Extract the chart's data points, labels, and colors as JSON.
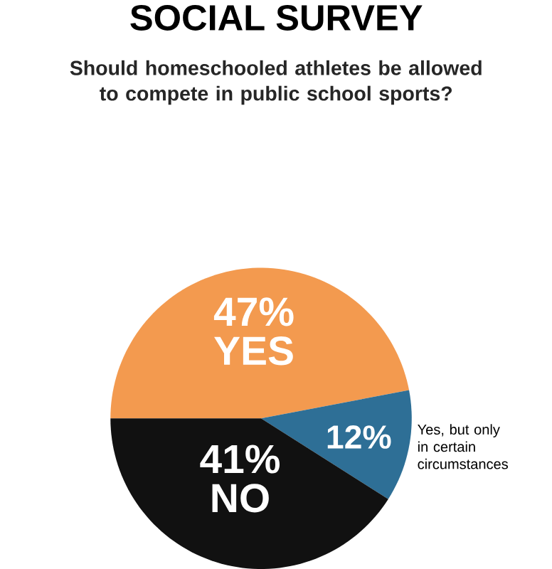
{
  "chart_data": {
    "type": "pie",
    "title": "SOCIAL SURVEY",
    "subtitle": "Should homeschooled athletes be allowed to compete in public school sports?",
    "categories": [
      "YES",
      "Yes, but only in certain circumstances",
      "NO"
    ],
    "values": [
      47,
      12,
      41
    ],
    "value_labels": [
      "47%",
      "12%",
      "41%"
    ],
    "colors": [
      "#f39a4f",
      "#2e6f96",
      "#111111"
    ]
  }
}
